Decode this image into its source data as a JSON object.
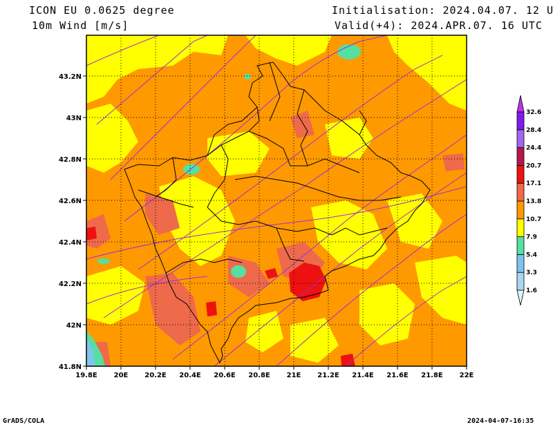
{
  "header": {
    "model_title": "ICON EU 0.0625 degree",
    "variable": "10m Wind [m/s]",
    "initialisation": "Initialisation: 2024.04.07. 12 UTC",
    "valid": "Valid(+4): 2024.APR.07. 16 UTC"
  },
  "map": {
    "lat_ticks": [
      "43.2N",
      "43N",
      "42.8N",
      "42.6N",
      "42.4N",
      "42.2N",
      "42N",
      "41.8N"
    ],
    "lon_ticks": [
      "19.8E",
      "20E",
      "20.2E",
      "20.4E",
      "20.6E",
      "20.8E",
      "21E",
      "21.2E",
      "21.4E",
      "21.6E",
      "21.8E",
      "22E"
    ]
  },
  "colorbar": {
    "labels": [
      "1.6",
      "3.3",
      "5.4",
      "7.9",
      "10.7",
      "13.8",
      "17.1",
      "20.7",
      "24.4",
      "28.4",
      "32.6"
    ],
    "colors": [
      "#dff6f6",
      "#a9d6f4",
      "#7fc3ee",
      "#55dfa0",
      "#ffff00",
      "#ff9900",
      "#ee6a4a",
      "#ee1111",
      "#b81450",
      "#a066ee",
      "#7f1bee",
      "#bb33ee"
    ]
  },
  "footer": {
    "software": "GrADS/COLA",
    "timestamp": "2024-04-07-16:35"
  }
}
